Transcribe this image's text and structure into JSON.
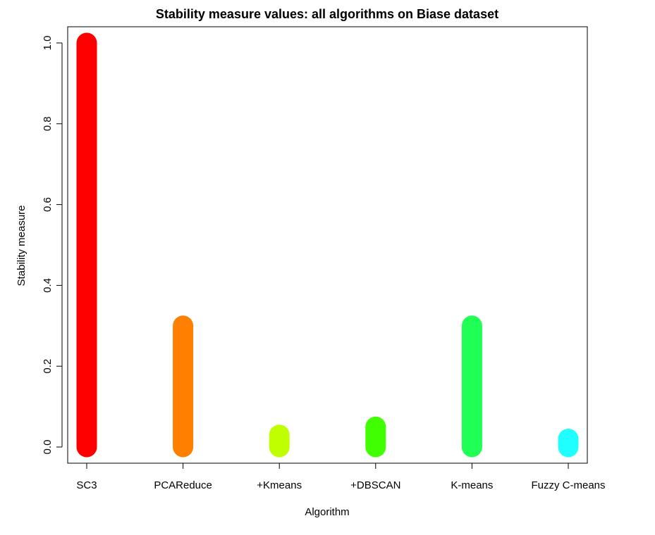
{
  "chart_data": {
    "type": "bar",
    "title": "Stability measure values: all algorithms on Biase dataset",
    "xlabel": "Algorithm",
    "ylabel": "Stability measure",
    "categories": [
      "SC3",
      "PCAReduce",
      "+Kmeans",
      "+DBSCAN",
      "K-means",
      "Fuzzy C-means"
    ],
    "values": [
      1.0,
      0.3,
      0.03,
      0.05,
      0.3,
      0.02
    ],
    "bar_colors": [
      "#FF0000",
      "#FF8000",
      "#BFFF00",
      "#40FF00",
      "#20FF55",
      "#20FFFF"
    ],
    "ylim": [
      -0.04,
      1.04
    ],
    "yticks": [
      0.0,
      0.2,
      0.4,
      0.6,
      0.8,
      1.0
    ],
    "ytick_labels": [
      "0.0",
      "0.2",
      "0.4",
      "0.6",
      "0.8",
      "1.0"
    ],
    "grid": false,
    "legend": "none"
  }
}
